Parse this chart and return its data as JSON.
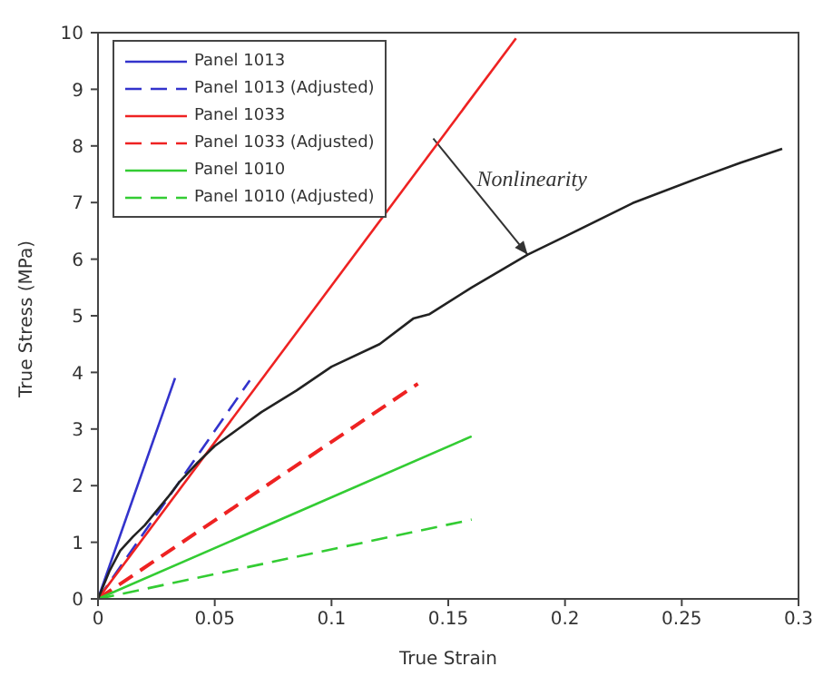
{
  "chart_data": {
    "type": "line",
    "xlabel": "True Strain",
    "ylabel": "True Stress (MPa)",
    "xlim": [
      0,
      0.3
    ],
    "ylim": [
      0,
      10
    ],
    "xticks": [
      0,
      0.05,
      0.1,
      0.15,
      0.2,
      0.25,
      0.3
    ],
    "yticks": [
      0,
      1,
      2,
      3,
      4,
      5,
      6,
      7,
      8,
      9,
      10
    ],
    "grid": false,
    "legend": "top left",
    "annotations": [
      {
        "text": "Nonlinearity",
        "x": 0.184,
        "y": 6.08
      }
    ],
    "series": [
      {
        "name": "Panel 1013",
        "color": "#3333cc",
        "line_style": "solid",
        "x": [
          0,
          0.033
        ],
        "values": [
          0,
          3.9
        ]
      },
      {
        "name": "Panel 1013 (Adjusted)",
        "color": "#3333cc",
        "line_style": "dashed",
        "x": [
          0,
          0.065
        ],
        "values": [
          0,
          3.86
        ]
      },
      {
        "name": "Panel 1033",
        "color": "#ee2222",
        "line_style": "solid",
        "x": [
          0,
          0.179
        ],
        "values": [
          0,
          9.9
        ]
      },
      {
        "name": "Panel 1033 (Adjusted)",
        "color": "#ee2222",
        "line_style": "dashed",
        "x": [
          0,
          0.137
        ],
        "values": [
          0,
          3.8
        ]
      },
      {
        "name": "Panel 1010",
        "color": "#33cc33",
        "line_style": "solid",
        "x": [
          0,
          0.16
        ],
        "values": [
          0,
          2.87
        ]
      },
      {
        "name": "Panel 1010 (Adjusted)",
        "color": "#33cc33",
        "line_style": "dashed",
        "x": [
          0,
          0.16
        ],
        "values": [
          0,
          1.4
        ]
      },
      {
        "color": "#222222",
        "line_style": "solid",
        "x": [
          0,
          0.005,
          0.0095,
          0.015,
          0.02,
          0.026,
          0.03,
          0.035,
          0.0425,
          0.05,
          0.06,
          0.07,
          0.085,
          0.1,
          0.1206,
          0.135,
          0.142,
          0.16,
          0.184,
          0.2,
          0.229,
          0.257,
          0.275,
          0.293
        ],
        "values": [
          0,
          0.5,
          0.85,
          1.1,
          1.3,
          1.6,
          1.8,
          2.07,
          2.4,
          2.7,
          3.0,
          3.3,
          3.68,
          4.1,
          4.5,
          4.95,
          5.03,
          5.5,
          6.08,
          6.4,
          6.99,
          7.43,
          7.7,
          7.95
        ]
      }
    ]
  }
}
